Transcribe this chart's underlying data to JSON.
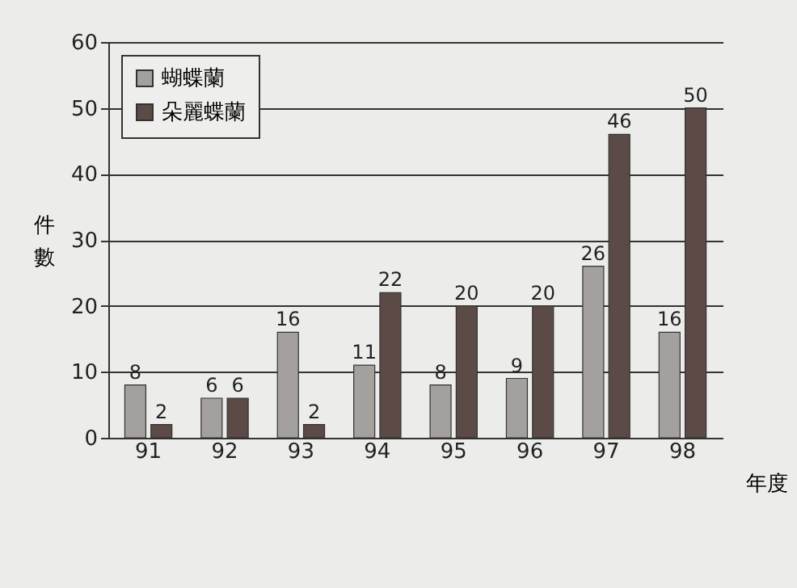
{
  "chart_data": {
    "type": "bar",
    "xlabel": "年度",
    "ylabel": "件數",
    "categories": [
      "91",
      "92",
      "93",
      "94",
      "95",
      "96",
      "97",
      "98"
    ],
    "series": [
      {
        "name": "蝴蝶蘭",
        "color": "#a3a09e",
        "values": [
          8,
          6,
          16,
          11,
          8,
          9,
          26,
          16
        ]
      },
      {
        "name": "朵麗蝶蘭",
        "color": "#5b4a46",
        "values": [
          2,
          6,
          2,
          22,
          20,
          20,
          46,
          50
        ]
      }
    ],
    "ylim": [
      0,
      60
    ],
    "yticks": [
      0,
      10,
      20,
      30,
      40,
      50,
      60
    ],
    "grid": "y",
    "legend": "top left",
    "data_labels": true
  }
}
